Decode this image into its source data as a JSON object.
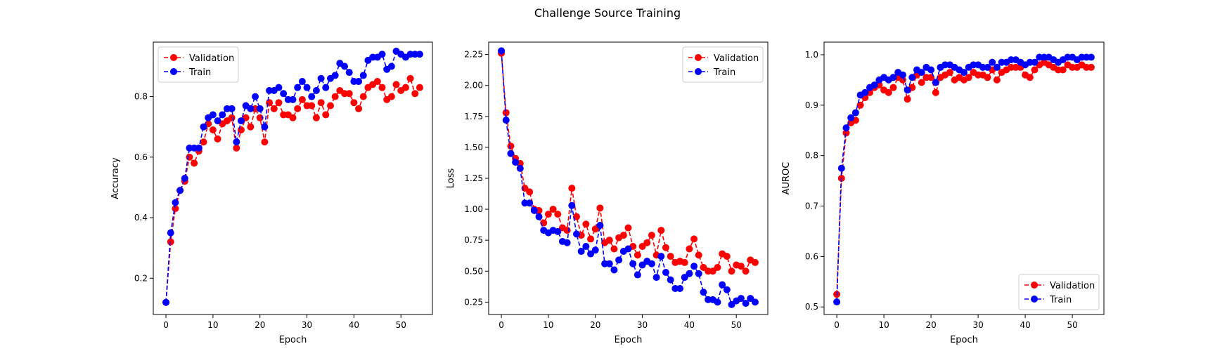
{
  "figure": {
    "suptitle": "Challenge Source Training"
  },
  "colors": {
    "validation": "#ff0000",
    "train": "#0000ff"
  },
  "chart_data": [
    {
      "type": "line",
      "title": "",
      "xlabel": "Epoch",
      "ylabel": "Accuracy",
      "xlim": [
        -2.7,
        56.7
      ],
      "ylim": [
        0.08,
        0.98
      ],
      "xticks": [
        0,
        10,
        20,
        30,
        40,
        50
      ],
      "yticks": [
        0.2,
        0.4,
        0.6,
        0.8
      ],
      "ytick_labels": [
        "0.2",
        "0.4",
        "0.6",
        "0.8"
      ],
      "legend_position": "upper-left",
      "grid": false,
      "series": [
        {
          "name": "Validation",
          "color": "#ff0000",
          "values": [
            0.12,
            0.32,
            0.43,
            0.49,
            0.52,
            0.6,
            0.58,
            0.62,
            0.65,
            0.71,
            0.69,
            0.66,
            0.71,
            0.72,
            0.73,
            0.63,
            0.69,
            0.73,
            0.7,
            0.76,
            0.73,
            0.65,
            0.78,
            0.76,
            0.78,
            0.74,
            0.74,
            0.73,
            0.76,
            0.79,
            0.77,
            0.77,
            0.73,
            0.78,
            0.74,
            0.77,
            0.8,
            0.82,
            0.81,
            0.81,
            0.78,
            0.76,
            0.8,
            0.83,
            0.84,
            0.85,
            0.83,
            0.79,
            0.8,
            0.84,
            0.82,
            0.83,
            0.86,
            0.81,
            0.83
          ]
        },
        {
          "name": "Train",
          "color": "#0000ff",
          "values": [
            0.12,
            0.35,
            0.45,
            0.49,
            0.53,
            0.63,
            0.63,
            0.63,
            0.7,
            0.73,
            0.74,
            0.72,
            0.74,
            0.76,
            0.76,
            0.65,
            0.72,
            0.77,
            0.76,
            0.8,
            0.76,
            0.7,
            0.82,
            0.82,
            0.83,
            0.81,
            0.79,
            0.79,
            0.83,
            0.85,
            0.83,
            0.8,
            0.82,
            0.86,
            0.83,
            0.86,
            0.87,
            0.91,
            0.9,
            0.88,
            0.85,
            0.85,
            0.87,
            0.92,
            0.93,
            0.93,
            0.94,
            0.89,
            0.9,
            0.95,
            0.94,
            0.93,
            0.94,
            0.94,
            0.94
          ]
        }
      ]
    },
    {
      "type": "line",
      "title": "",
      "xlabel": "Epoch",
      "ylabel": "Loss",
      "xlim": [
        -2.7,
        56.7
      ],
      "ylim": [
        0.15,
        2.35
      ],
      "xticks": [
        0,
        10,
        20,
        30,
        40,
        50
      ],
      "yticks": [
        0.25,
        0.5,
        0.75,
        1.0,
        1.25,
        1.5,
        1.75,
        2.0,
        2.25
      ],
      "ytick_labels": [
        "0.25",
        "0.50",
        "0.75",
        "1.00",
        "1.25",
        "1.50",
        "1.75",
        "2.00",
        "2.25"
      ],
      "legend_position": "upper-right",
      "grid": false,
      "series": [
        {
          "name": "Validation",
          "color": "#ff0000",
          "values": [
            2.26,
            1.78,
            1.51,
            1.41,
            1.37,
            1.17,
            1.14,
            1.0,
            0.99,
            0.89,
            0.96,
            1.0,
            0.96,
            0.85,
            0.83,
            1.17,
            0.94,
            0.79,
            0.88,
            0.76,
            0.84,
            1.01,
            0.73,
            0.75,
            0.68,
            0.77,
            0.79,
            0.85,
            0.7,
            0.63,
            0.7,
            0.73,
            0.79,
            0.63,
            0.83,
            0.69,
            0.62,
            0.57,
            0.58,
            0.57,
            0.68,
            0.76,
            0.63,
            0.53,
            0.5,
            0.5,
            0.53,
            0.64,
            0.62,
            0.5,
            0.55,
            0.54,
            0.5,
            0.59,
            0.57
          ]
        },
        {
          "name": "Train",
          "color": "#0000ff",
          "values": [
            2.28,
            1.72,
            1.45,
            1.38,
            1.33,
            1.05,
            1.05,
            0.99,
            0.94,
            0.83,
            0.81,
            0.83,
            0.82,
            0.74,
            0.73,
            1.03,
            0.8,
            0.66,
            0.7,
            0.64,
            0.67,
            0.87,
            0.56,
            0.56,
            0.51,
            0.59,
            0.66,
            0.68,
            0.56,
            0.47,
            0.55,
            0.58,
            0.56,
            0.45,
            0.62,
            0.49,
            0.43,
            0.36,
            0.36,
            0.45,
            0.48,
            0.54,
            0.48,
            0.33,
            0.27,
            0.27,
            0.25,
            0.39,
            0.35,
            0.23,
            0.26,
            0.28,
            0.24,
            0.28,
            0.25
          ]
        }
      ]
    },
    {
      "type": "line",
      "title": "",
      "xlabel": "Epoch",
      "ylabel": "AUROC",
      "xlim": [
        -2.7,
        56.7
      ],
      "ylim": [
        0.485,
        1.025
      ],
      "xticks": [
        0,
        10,
        20,
        30,
        40,
        50
      ],
      "yticks": [
        0.5,
        0.6,
        0.7,
        0.8,
        0.9,
        1.0
      ],
      "ytick_labels": [
        "0.5",
        "0.6",
        "0.7",
        "0.8",
        "0.9",
        "1.0"
      ],
      "legend_position": "lower-right",
      "grid": false,
      "series": [
        {
          "name": "Validation",
          "color": "#ff0000",
          "values": [
            0.525,
            0.755,
            0.845,
            0.865,
            0.87,
            0.9,
            0.915,
            0.925,
            0.935,
            0.94,
            0.93,
            0.925,
            0.935,
            0.955,
            0.95,
            0.912,
            0.935,
            0.96,
            0.945,
            0.955,
            0.955,
            0.925,
            0.955,
            0.96,
            0.965,
            0.95,
            0.955,
            0.95,
            0.955,
            0.965,
            0.96,
            0.96,
            0.955,
            0.97,
            0.95,
            0.965,
            0.97,
            0.975,
            0.975,
            0.975,
            0.96,
            0.955,
            0.97,
            0.98,
            0.985,
            0.98,
            0.975,
            0.97,
            0.97,
            0.98,
            0.975,
            0.975,
            0.98,
            0.975,
            0.975
          ]
        },
        {
          "name": "Train",
          "color": "#0000ff",
          "values": [
            0.51,
            0.775,
            0.855,
            0.875,
            0.885,
            0.92,
            0.925,
            0.935,
            0.94,
            0.95,
            0.955,
            0.95,
            0.955,
            0.965,
            0.96,
            0.93,
            0.955,
            0.97,
            0.965,
            0.975,
            0.97,
            0.945,
            0.975,
            0.98,
            0.98,
            0.975,
            0.97,
            0.965,
            0.975,
            0.98,
            0.98,
            0.975,
            0.975,
            0.985,
            0.975,
            0.985,
            0.985,
            0.99,
            0.99,
            0.985,
            0.98,
            0.985,
            0.985,
            0.995,
            0.995,
            0.995,
            0.99,
            0.985,
            0.99,
            0.995,
            0.995,
            0.99,
            0.995,
            0.995,
            0.995
          ]
        }
      ]
    }
  ]
}
